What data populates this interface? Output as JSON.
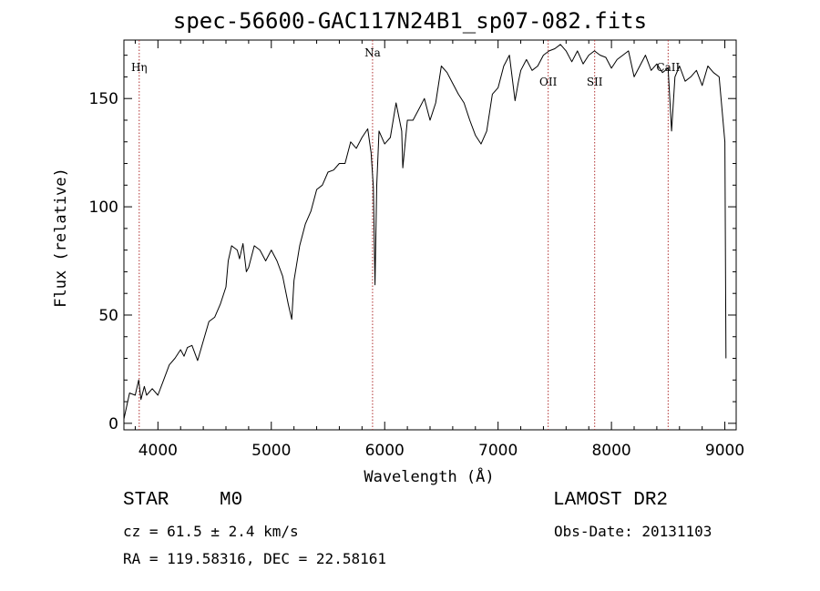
{
  "chart_data": {
    "type": "line",
    "title": "spec-56600-GAC117N24B1_sp07-082.fits",
    "xlabel": "Wavelength (Å)",
    "ylabel": "Flux (relative)",
    "xlim": [
      3700,
      9100
    ],
    "ylim": [
      -3,
      177
    ],
    "xticks": [
      4000,
      5000,
      6000,
      7000,
      8000,
      9000
    ],
    "yticks": [
      0,
      50,
      100,
      150
    ],
    "grid": false,
    "series": [
      {
        "color": "#000000",
        "x": [
          3700,
          3750,
          3800,
          3830,
          3850,
          3880,
          3900,
          3950,
          4000,
          4050,
          4100,
          4150,
          4200,
          4230,
          4260,
          4300,
          4350,
          4400,
          4450,
          4500,
          4550,
          4600,
          4620,
          4650,
          4700,
          4720,
          4750,
          4780,
          4800,
          4850,
          4900,
          4950,
          5000,
          5050,
          5100,
          5150,
          5180,
          5200,
          5250,
          5300,
          5350,
          5400,
          5450,
          5500,
          5550,
          5600,
          5650,
          5700,
          5750,
          5800,
          5850,
          5880,
          5900,
          5915,
          5930,
          5950,
          6000,
          6050,
          6100,
          6150,
          6160,
          6200,
          6250,
          6300,
          6350,
          6400,
          6450,
          6500,
          6550,
          6600,
          6650,
          6700,
          6750,
          6800,
          6850,
          6900,
          6950,
          7000,
          7050,
          7100,
          7150,
          7180,
          7200,
          7250,
          7300,
          7350,
          7400,
          7450,
          7500,
          7550,
          7600,
          7650,
          7700,
          7750,
          7800,
          7850,
          7900,
          7950,
          8000,
          8050,
          8100,
          8150,
          8200,
          8250,
          8300,
          8350,
          8400,
          8450,
          8500,
          8530,
          8560,
          8600,
          8650,
          8700,
          8750,
          8800,
          8850,
          8900,
          8950,
          9000,
          9010
        ],
        "y": [
          2,
          14,
          13,
          20,
          11,
          17,
          13,
          16,
          13,
          20,
          27,
          30,
          34,
          31,
          35,
          36,
          29,
          38,
          47,
          49,
          55,
          63,
          75,
          82,
          80,
          76,
          83,
          70,
          72,
          82,
          80,
          75,
          80,
          75,
          68,
          55,
          48,
          66,
          82,
          92,
          98,
          108,
          110,
          116,
          117,
          120,
          120,
          130,
          127,
          132,
          136,
          125,
          109,
          64,
          110,
          135,
          129,
          132,
          148,
          135,
          118,
          140,
          140,
          145,
          150,
          140,
          148,
          165,
          162,
          157,
          152,
          148,
          140,
          133,
          129,
          135,
          152,
          155,
          165,
          170,
          149,
          158,
          163,
          168,
          163,
          165,
          170,
          172,
          173,
          175,
          172,
          167,
          172,
          166,
          170,
          172,
          170,
          169,
          164,
          168,
          170,
          172,
          160,
          165,
          170,
          163,
          166,
          162,
          164,
          135,
          160,
          165,
          158,
          160,
          163,
          156,
          165,
          162,
          160,
          130,
          30
        ]
      }
    ],
    "lines": [
      {
        "label": "Hη",
        "x": 3835
      },
      {
        "label": "Na",
        "x": 5893
      },
      {
        "label": "OII",
        "x": 7442
      },
      {
        "label": "SII",
        "x": 7852
      },
      {
        "label": "CaII",
        "x": 8500
      }
    ]
  },
  "info": {
    "object_class": "STAR",
    "subclass": "M0",
    "survey": "LAMOST DR2",
    "redshift": "cz = 61.5 ± 2.4 km/s",
    "obs_date": "Obs-Date: 20131103",
    "coords": "RA = 119.58316, DEC =  22.58161"
  }
}
